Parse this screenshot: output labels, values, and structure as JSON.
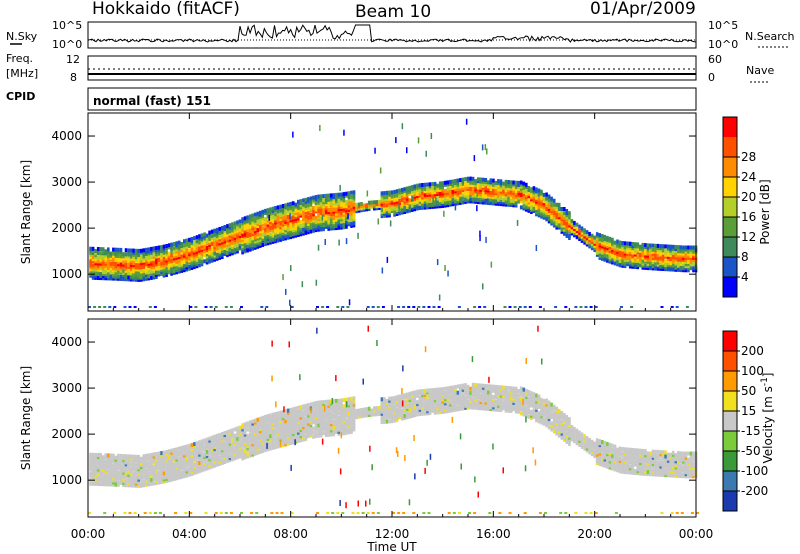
{
  "header": {
    "station": "Hokkaido (fitACF)",
    "beam": "Beam 10",
    "date": "01/Apr/2009"
  },
  "noise_panel": {
    "left_label": "N.Sky",
    "left_ticks": [
      "10^5",
      "10^0"
    ],
    "right_ticks": [
      "10^5",
      "10^0"
    ],
    "right_label": "N.Search"
  },
  "freq_panel": {
    "left_label_1": "Freq.",
    "left_label_2": "[MHz]",
    "left_ticks": [
      "12",
      "8"
    ],
    "right_ticks": [
      "60",
      "0"
    ],
    "right_label": "Nave"
  },
  "cpid_panel": {
    "label": "CPID",
    "mode": "normal (fast) 151"
  },
  "colors": {
    "power_scale": [
      "#0000ff",
      "#1a55c8",
      "#3f8a5a",
      "#5a9e3a",
      "#b5cf2a",
      "#ffd200",
      "#ff8c00",
      "#ff5000",
      "#ff0000"
    ],
    "velocity_scale": [
      "#1a3ab0",
      "#3a7ab0",
      "#3a9a3a",
      "#7acc3a",
      "#c8c8c8",
      "#f0e020",
      "#ff9a00",
      "#ff5000",
      "#ff0000"
    ]
  },
  "chart_data": [
    {
      "type": "heatmap",
      "name": "power_panel",
      "title": "",
      "xlabel": "",
      "ylabel": "Slant Range [km]",
      "xlim": [
        0,
        24
      ],
      "ylim": [
        200,
        4500
      ],
      "x_tick_labels": [
        "00:00",
        "04:00",
        "08:00",
        "12:00",
        "16:00",
        "20:00",
        "00:00"
      ],
      "y_ticks": [
        1000,
        2000,
        3000,
        4000
      ],
      "colorbar": {
        "label": "Power [dB]",
        "range": [
          0,
          32
        ],
        "tick_labels": [
          "4",
          "8",
          "12",
          "16",
          "20",
          "24",
          "28"
        ]
      },
      "echo_bands": [
        {
          "hours": [
            0,
            1,
            2,
            3,
            4,
            5,
            6,
            7,
            8,
            9,
            10,
            11,
            12,
            13,
            14,
            15,
            16,
            17,
            18,
            19,
            20,
            21,
            22,
            23.5
          ],
          "center_km": [
            1200,
            1180,
            1150,
            1250,
            1400,
            1600,
            1800,
            2000,
            2150,
            2300,
            2350,
            2450,
            2500,
            2650,
            2700,
            2800,
            2750,
            2700,
            2450,
            2000,
            1600,
            1400,
            1350,
            1300
          ]
        }
      ]
    },
    {
      "type": "heatmap",
      "name": "velocity_panel",
      "title": "",
      "xlabel": "Time UT",
      "ylabel": "Slant Range [km]",
      "xlim": [
        0,
        24
      ],
      "ylim": [
        200,
        4500
      ],
      "x_tick_labels": [
        "00:00",
        "04:00",
        "08:00",
        "12:00",
        "16:00",
        "20:00",
        "00:00"
      ],
      "y_ticks": [
        1000,
        2000,
        3000,
        4000
      ],
      "colorbar": {
        "label": "Velocity [m s",
        "label_sup": "-1",
        "label_end": "]",
        "range": [
          -250,
          250
        ],
        "tick_labels": [
          "200",
          "100",
          "50",
          "15",
          "-15",
          "-50",
          "-100",
          "-200"
        ]
      }
    }
  ]
}
